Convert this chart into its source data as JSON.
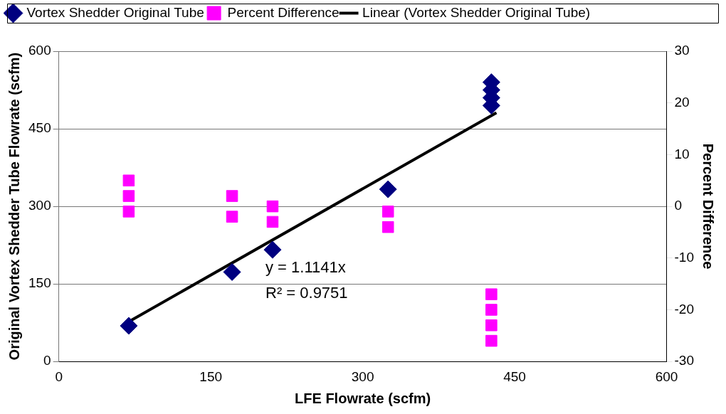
{
  "chart_data": {
    "type": "scatter",
    "xlabel": "LFE Flowrate (scfm)",
    "ylabel": "Original Vortex Shedder Tube Flowrate (scfm)",
    "y2label": "Percent Difference",
    "xlim": [
      0,
      600
    ],
    "xticks": [
      0,
      150,
      300,
      450,
      600
    ],
    "ylim": [
      0,
      600
    ],
    "yticks": [
      0,
      150,
      300,
      450,
      600
    ],
    "y2lim": [
      -30,
      30
    ],
    "y2ticks": [
      -30,
      -20,
      -10,
      0,
      10,
      20,
      30
    ],
    "grid": "y",
    "legend": "top",
    "annotations": [
      "y = 1.1141x",
      "R² = 0.9751"
    ],
    "series": [
      {
        "name": "Vortex Shedder Original Tube",
        "type": "scatter",
        "marker": "diamond",
        "color": "#000080",
        "x": [
          69,
          171,
          211,
          325,
          427,
          427,
          427,
          427
        ],
        "values": [
          69,
          173,
          216,
          333,
          495,
          510,
          525,
          540
        ]
      },
      {
        "name": "Percent Difference",
        "type": "scatter",
        "marker": "square",
        "color": "#ff00ff",
        "axis": "y2",
        "x": [
          69,
          69,
          69,
          171,
          171,
          211,
          211,
          325,
          325,
          427,
          427,
          427,
          427
        ],
        "values": [
          5,
          2,
          -1,
          2,
          -2,
          0,
          -3,
          -1,
          -4,
          -17,
          -20,
          -23,
          -26
        ]
      },
      {
        "name": "Linear (Vortex Shedder Original Tube)",
        "type": "line",
        "marker": "none",
        "line_style": "solid",
        "color": "#000000",
        "x": [
          69,
          432
        ],
        "values": [
          77,
          481
        ]
      }
    ]
  }
}
